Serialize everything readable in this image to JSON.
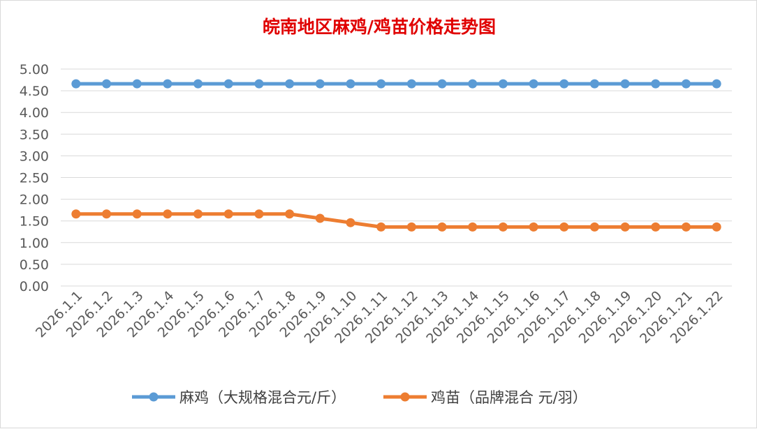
{
  "chart_data": {
    "type": "line",
    "title": "皖南地区麻鸡/鸡苗价格走势图",
    "xlabel": "",
    "ylabel": "",
    "categories": [
      "2026.1.1",
      "2026.1.2",
      "2026.1.3",
      "2026.1.4",
      "2026.1.5",
      "2026.1.6",
      "2026.1.7",
      "2026.1.8",
      "2026.1.9",
      "2026.1.10",
      "2026.1.11",
      "2026.1.12",
      "2026.1.13",
      "2026.1.14",
      "2026.1.15",
      "2026.1.16",
      "2026.1.17",
      "2026.1.18",
      "2026.1.19",
      "2026.1.20",
      "2026.1.21",
      "2026.1.22"
    ],
    "ylim": [
      0,
      5
    ],
    "yticks": [
      "0.00",
      "0.50",
      "1.00",
      "1.50",
      "2.00",
      "2.50",
      "3.00",
      "3.50",
      "4.00",
      "4.50",
      "5.00"
    ],
    "grid": true,
    "legend_position": "bottom",
    "series": [
      {
        "name": "麻鸡（大规格混合元/斤）",
        "color": "#5b9bd5",
        "values": [
          4.66,
          4.66,
          4.66,
          4.66,
          4.66,
          4.66,
          4.66,
          4.66,
          4.66,
          4.66,
          4.66,
          4.66,
          4.66,
          4.66,
          4.66,
          4.66,
          4.66,
          4.66,
          4.66,
          4.66,
          4.66,
          4.66
        ]
      },
      {
        "name": "鸡苗（品牌混合 元/羽）",
        "color": "#ed7d31",
        "values": [
          1.66,
          1.66,
          1.66,
          1.66,
          1.66,
          1.66,
          1.66,
          1.66,
          1.56,
          1.46,
          1.36,
          1.36,
          1.36,
          1.36,
          1.36,
          1.36,
          1.36,
          1.36,
          1.36,
          1.36,
          1.36,
          1.36
        ]
      }
    ]
  }
}
